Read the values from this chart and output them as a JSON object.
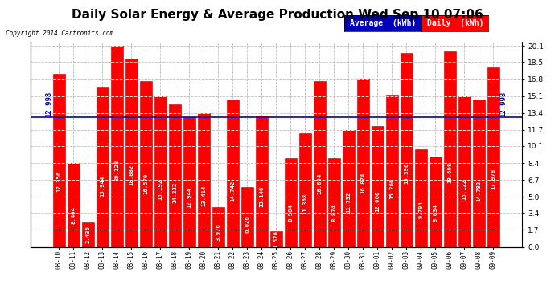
{
  "title": "Daily Solar Energy & Average Production Wed Sep 10 07:06",
  "copyright": "Copyright 2014 Cartronics.com",
  "legend_average": "Average  (kWh)",
  "legend_daily": "Daily  (kWh)",
  "average_value": 12.998,
  "categories": [
    "08-10",
    "08-11",
    "08-12",
    "08-13",
    "08-14",
    "08-15",
    "08-16",
    "08-17",
    "08-18",
    "08-19",
    "08-20",
    "08-21",
    "08-22",
    "08-23",
    "08-24",
    "08-25",
    "08-26",
    "08-27",
    "08-28",
    "08-29",
    "08-30",
    "08-31",
    "09-01",
    "09-02",
    "09-03",
    "09-04",
    "09-05",
    "09-06",
    "09-07",
    "09-08",
    "09-09"
  ],
  "values": [
    17.356,
    8.404,
    2.436,
    15.944,
    20.128,
    18.882,
    16.57,
    15.192,
    14.232,
    12.944,
    13.414,
    3.976,
    14.742,
    6.026,
    13.146,
    1.576,
    8.904,
    11.368,
    16.604,
    8.874,
    11.732,
    16.874,
    12.066,
    15.266,
    19.396,
    9.794,
    9.034,
    19.608,
    15.122,
    14.782,
    17.978
  ],
  "value_labels": [
    "17.356",
    "8.404",
    "2.436",
    "15.944",
    "20.128",
    "18.882",
    "16.570",
    "15.192",
    "14.232",
    "12.944",
    "13.414",
    "3.976",
    "14.742",
    "6.026",
    "13.146",
    "1.576",
    "8.904",
    "11.368",
    "16.604",
    "8.874",
    "11.732",
    "16.874",
    "12.066",
    "15.266",
    "19.396",
    "9.794",
    "9.034",
    "19.608",
    "15.122",
    "14.782",
    "17.978"
  ],
  "bar_color": "#ff0000",
  "bar_edge_color": "#bb0000",
  "average_line_color": "#0000cc",
  "background_color": "#ffffff",
  "plot_bg_color": "#ffffff",
  "grid_color": "#bbbbbb",
  "yticks": [
    0.0,
    1.7,
    3.4,
    5.0,
    6.7,
    8.4,
    10.1,
    11.7,
    13.4,
    15.1,
    16.8,
    18.5,
    20.1
  ],
  "ylim_max": 20.5,
  "title_fontsize": 11,
  "xtick_fontsize": 5.5,
  "ytick_fontsize": 6.5,
  "value_fontsize": 5.2,
  "avg_label_fontsize": 6.5,
  "avg_label": "12.998",
  "legend_avg_color": "#0000bb",
  "legend_daily_color": "#ff0000",
  "legend_text_color": "#ffffff",
  "legend_fontsize": 7
}
